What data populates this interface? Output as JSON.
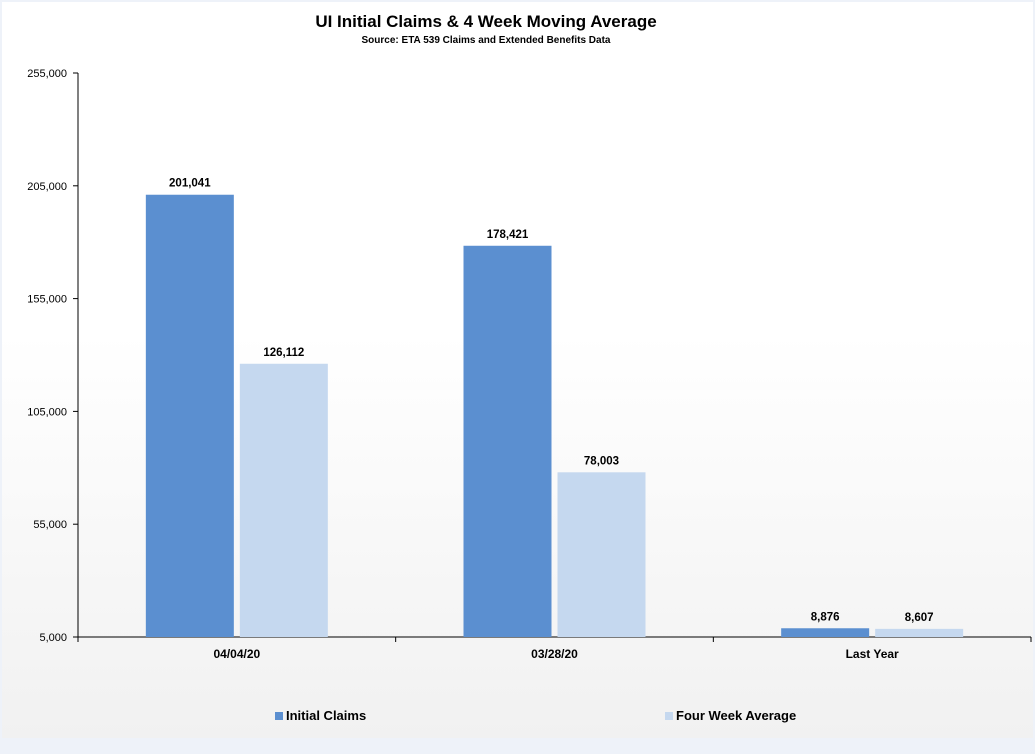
{
  "chart_data": {
    "type": "bar",
    "title": "UI Initial Claims &  4 Week Moving Average",
    "subtitle": "Source: ETA 539 Claims and Extended Benefits Data",
    "categories": [
      "04/04/20",
      "03/28/20",
      "Last Year"
    ],
    "series": [
      {
        "name": "Initial Claims",
        "color": "#5b8fd0",
        "values": [
          201041,
          178421,
          8876
        ],
        "labels": [
          "201,041",
          "178,421",
          "8,876"
        ]
      },
      {
        "name": "Four Week Average",
        "color": "#c5d8ef",
        "values": [
          126112,
          78003,
          8607
        ],
        "labels": [
          "126,112",
          "78,003",
          "8,607"
        ]
      }
    ],
    "ylim": [
      5000,
      255000
    ],
    "yticks": [
      5000,
      55000,
      105000,
      155000,
      205000,
      255000
    ],
    "ytick_labels": [
      "5,000",
      "55,000",
      "105,000",
      "155,000",
      "205,000",
      "255,000"
    ],
    "xlabel": "",
    "ylabel": "",
    "grid": false,
    "legend_position": "bottom"
  }
}
